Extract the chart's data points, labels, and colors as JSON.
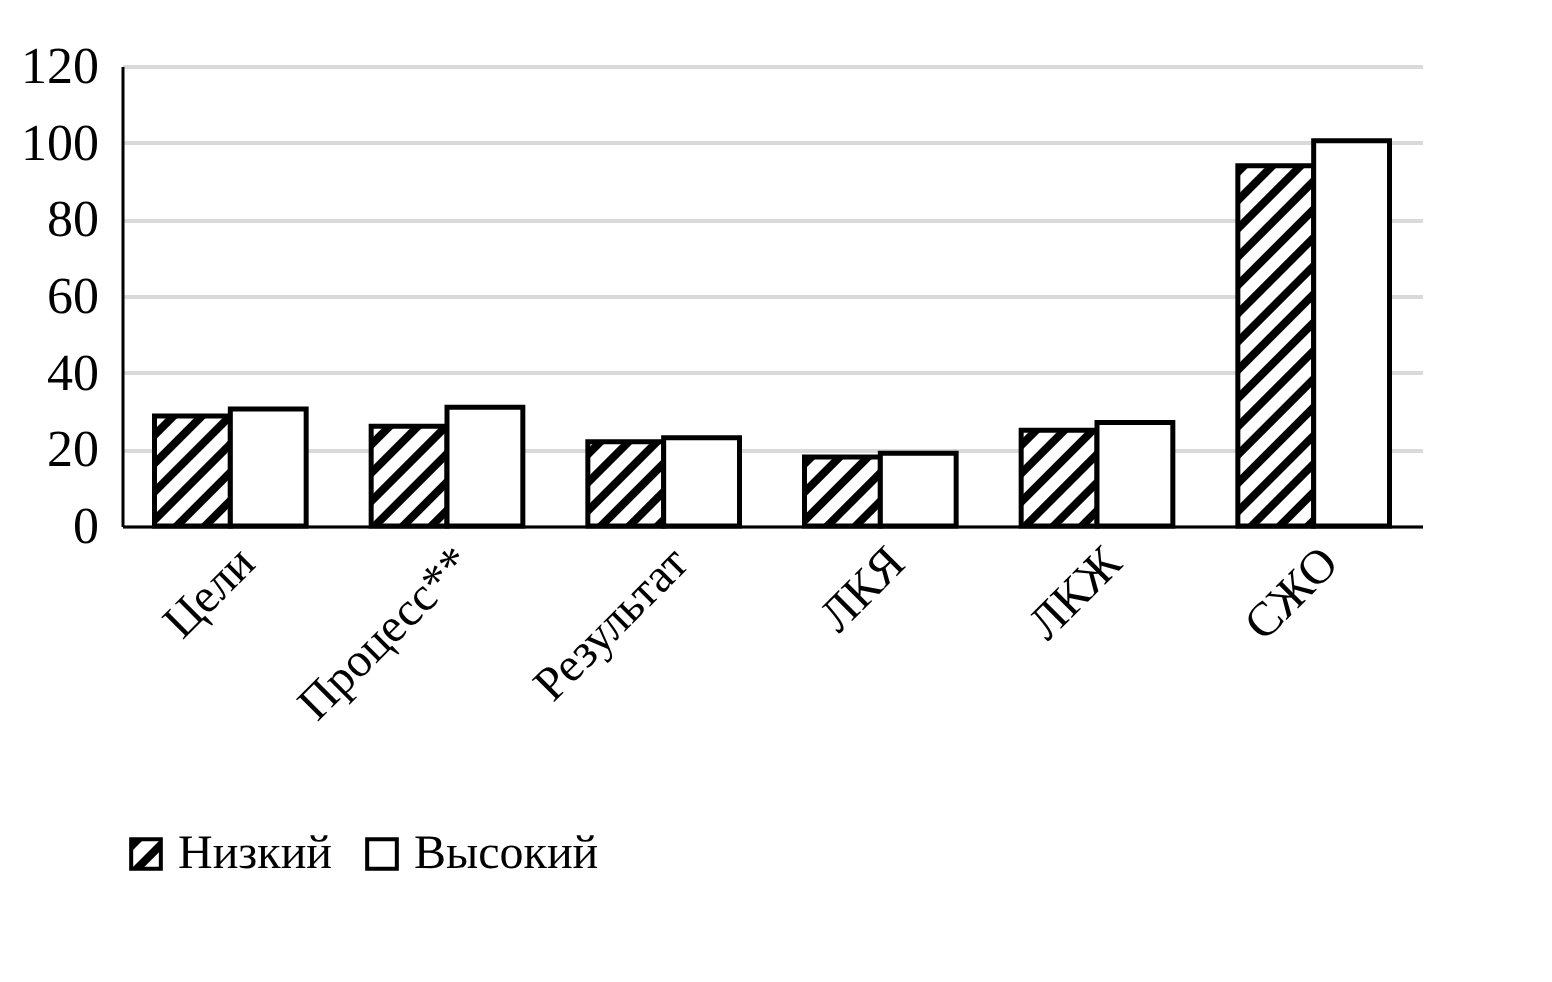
{
  "chart_data": {
    "type": "bar",
    "categories": [
      "Цели",
      "Процесс**",
      "Результат",
      "ЛКЯ",
      "ЛКЖ",
      "СЖО"
    ],
    "series": [
      {
        "name": "Низкий",
        "color": "#000000",
        "values": [
          28.7,
          26,
          22,
          18,
          25,
          94
        ]
      },
      {
        "name": "Высокий",
        "color": "#ffffff",
        "values": [
          30.5,
          31,
          23,
          19,
          27,
          100.5
        ]
      }
    ],
    "ylim": [
      0,
      120
    ],
    "yticks": [
      0,
      20,
      40,
      60,
      80,
      100,
      120
    ],
    "grid": "y",
    "legend": "bottom"
  }
}
